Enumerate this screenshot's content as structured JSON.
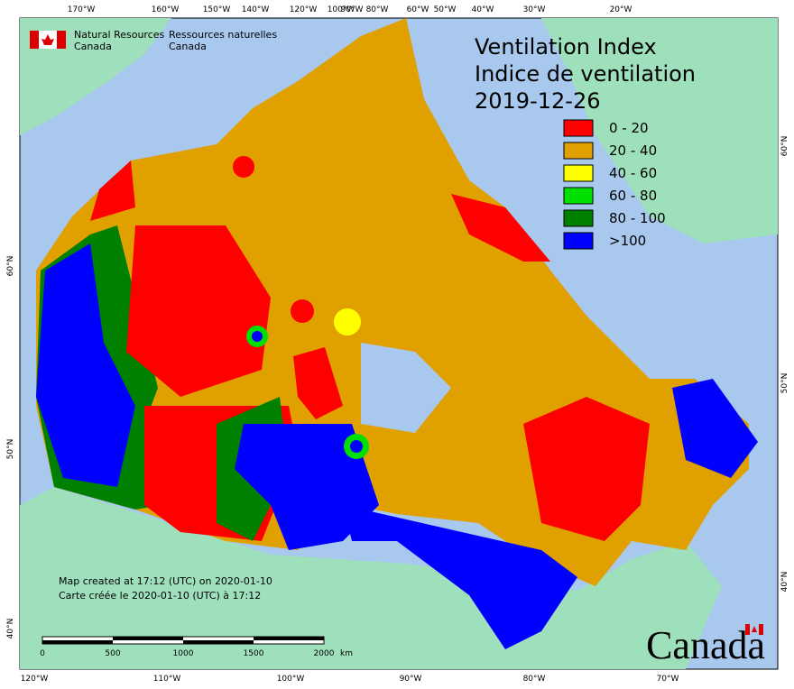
{
  "header": {
    "agency_en": [
      "Natural Resources",
      "Canada"
    ],
    "agency_fr": [
      "Ressources naturelles",
      "Canada"
    ]
  },
  "title": {
    "line1": "Ventilation Index",
    "line2": "Indice de ventilation",
    "date": "2019-12-26"
  },
  "legend": [
    {
      "label": "0 - 20",
      "color": "#ff0000"
    },
    {
      "label": "20 - 40",
      "color": "#e0a000"
    },
    {
      "label": "40 - 60",
      "color": "#ffff00"
    },
    {
      "label": "60 - 80",
      "color": "#00e000"
    },
    {
      "label": "80 - 100",
      "color": "#008000"
    },
    {
      "label": ">100",
      "color": "#0000ff"
    }
  ],
  "top_labels": [
    "170°W",
    "160°W",
    "150°W",
    "140°W",
    "120°W",
    "100°W",
    "90°W",
    "80°W",
    "60°W",
    "50°W",
    "40°W",
    "30°W",
    "20°W"
  ],
  "bottom_labels": [
    "120°W",
    "110°W",
    "100°W",
    "90°W",
    "80°W",
    "70°W"
  ],
  "left_labels": [
    "60°N",
    "50°N",
    "40°N"
  ],
  "right_labels": [
    "60°N",
    "50°N",
    "40°N"
  ],
  "notes": [
    "Map created at 17:12 (UTC) on 2020-01-10",
    "Carte créée le 2020-01-10 (UTC) à 17:12"
  ],
  "scale": {
    "labels": [
      "0",
      "500",
      "1000",
      "1500",
      "2000"
    ],
    "unit": "km"
  },
  "wordmark": "Canada"
}
